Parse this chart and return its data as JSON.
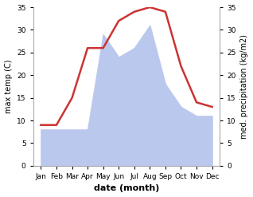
{
  "months": [
    "Jan",
    "Feb",
    "Mar",
    "Apr",
    "May",
    "Jun",
    "Jul",
    "Aug",
    "Sep",
    "Oct",
    "Nov",
    "Dec"
  ],
  "temperature": [
    9,
    9,
    15,
    26,
    26,
    32,
    34,
    35,
    34,
    22,
    14,
    13
  ],
  "precipitation": [
    8,
    8,
    8,
    8,
    29,
    24,
    26,
    31,
    18,
    13,
    11,
    11
  ],
  "temp_color": "#cc3333",
  "precip_color": "#bbc8ee",
  "ylim": [
    0,
    35
  ],
  "yticks": [
    0,
    5,
    10,
    15,
    20,
    25,
    30,
    35
  ],
  "xlabel": "date (month)",
  "ylabel_left": "max temp (C)",
  "ylabel_right": "med. precipitation (kg/m2)",
  "bg_color": "#ffffff",
  "spine_color": "#aaaaaa",
  "tick_label_size": 6.5,
  "axis_label_size": 7
}
